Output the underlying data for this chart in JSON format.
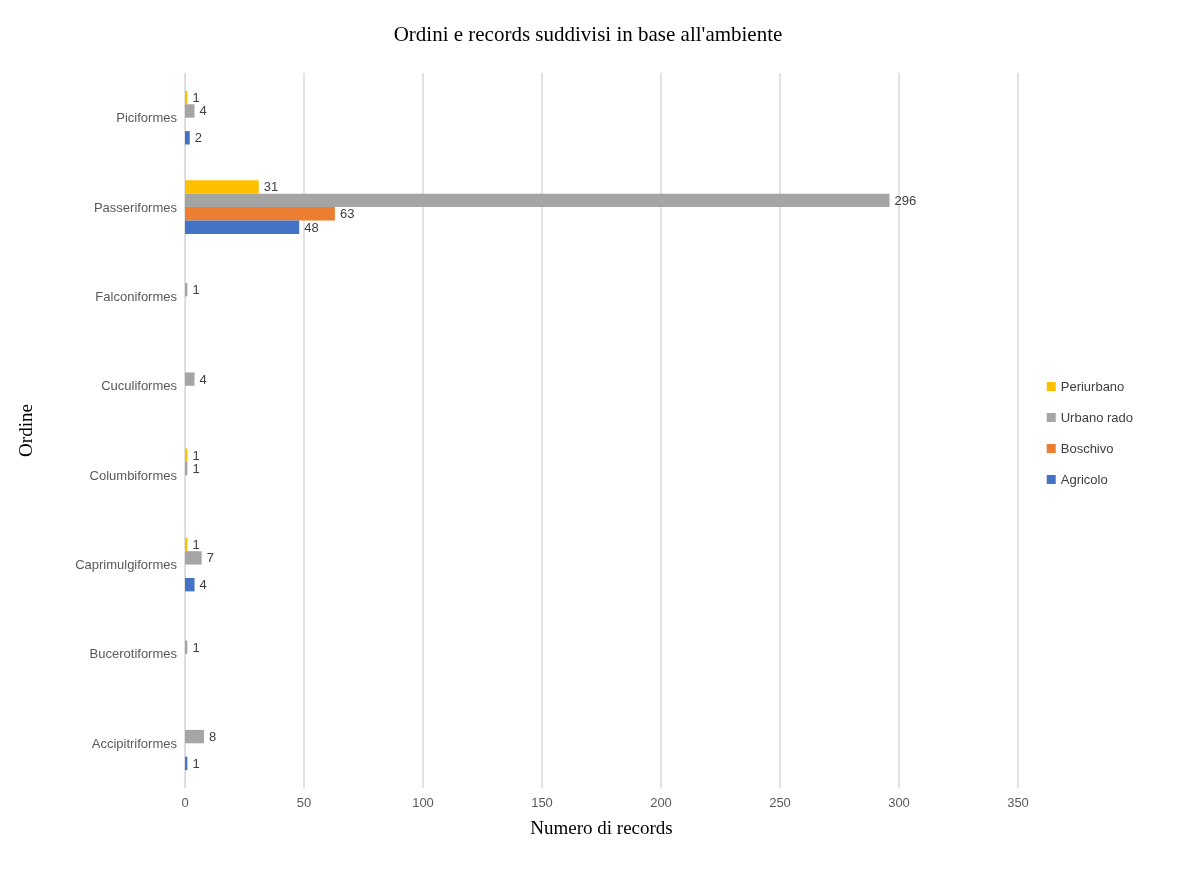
{
  "chart_data": {
    "type": "bar",
    "orientation": "horizontal",
    "title": "Ordini e records suddivisi in base all'ambiente",
    "xlabel": "Numero di records",
    "ylabel": "Ordine",
    "categories": [
      "Piciformes",
      "Passeriformes",
      "Falconiformes",
      "Cuculiformes",
      "Columbiformes",
      "Caprimulgiformes",
      "Bucerotiformes",
      "Accipitriformes"
    ],
    "series": [
      {
        "name": "Periurbano",
        "color": "#ffc000",
        "values": [
          1,
          31,
          null,
          null,
          1,
          1,
          null,
          null
        ]
      },
      {
        "name": "Urbano rado",
        "color": "#a5a5a5",
        "values": [
          4,
          296,
          1,
          4,
          1,
          7,
          1,
          8
        ]
      },
      {
        "name": "Boschivo",
        "color": "#ed7d31",
        "values": [
          null,
          63,
          null,
          null,
          null,
          null,
          null,
          null
        ]
      },
      {
        "name": "Agricolo",
        "color": "#4472c4",
        "values": [
          2,
          48,
          null,
          null,
          null,
          4,
          null,
          1
        ]
      }
    ],
    "xlim": [
      0,
      350
    ],
    "xticks": [
      0,
      50,
      100,
      150,
      200,
      250,
      300,
      350
    ],
    "grid": "x",
    "legend": "right",
    "data_labels": true
  }
}
